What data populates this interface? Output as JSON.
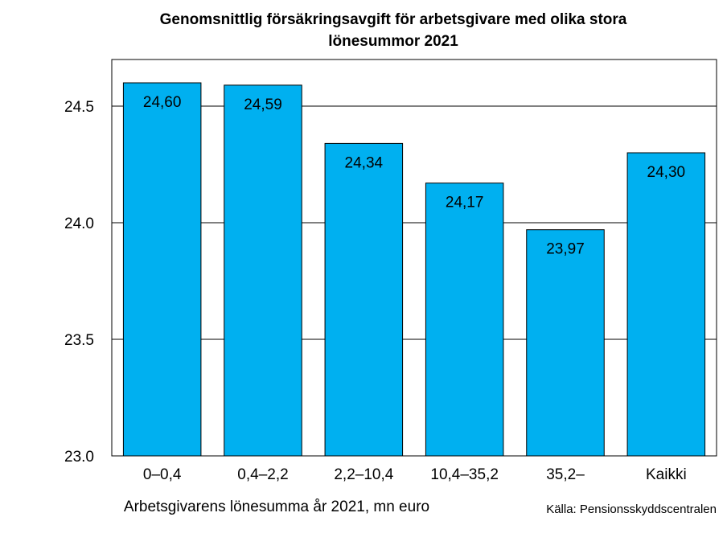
{
  "chart_data": {
    "type": "bar",
    "title": [
      "Genomsnittlig försäkringsavgift för arbetsgivare med olika stora",
      "lönesummor 2021"
    ],
    "categories": [
      "0–0,4",
      "0,4–2,2",
      "2,2–10,4",
      "10,4–35,2",
      "35,2–",
      "Kaikki"
    ],
    "values": [
      24.6,
      24.59,
      24.34,
      24.17,
      23.97,
      24.3
    ],
    "data_labels": [
      "24,60",
      "24,59",
      "24,34",
      "24,17",
      "23,97",
      "24,30"
    ],
    "yticks": [
      23.0,
      23.5,
      24.0,
      24.5
    ],
    "ytick_labels": [
      "23.0",
      "23.5",
      "24.0",
      "24.5"
    ],
    "ylim": [
      23.0,
      24.7
    ],
    "xlabel": "Arbetsgivarens lönesumma år 2021, mn euro",
    "ylabel": "",
    "source": "Källa: Pensionsskyddscentralen",
    "grid": true,
    "bar_color": "#00B0F0",
    "edge_color": "#000000"
  }
}
